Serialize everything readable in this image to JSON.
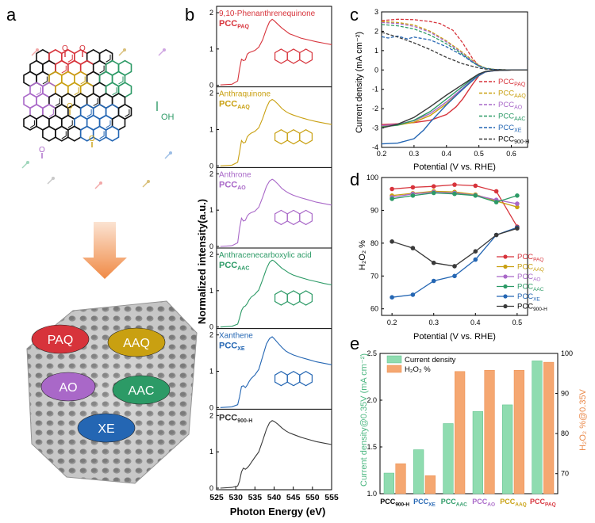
{
  "panel_labels": [
    "a",
    "b",
    "c",
    "d",
    "e"
  ],
  "colors": {
    "PAQ": "#d7333b",
    "AAQ": "#c9a011",
    "AO": "#a968c8",
    "AAC": "#2c9a66",
    "XE": "#2466b3",
    "H900": "#3a3a3a",
    "bar_green": "#8fdcb0",
    "bar_orange": "#f5a771",
    "axis_left_e": "#4fb883",
    "axis_right_e": "#ea8a4b"
  },
  "panel_a": {
    "cluster_labels": [
      "PAQ",
      "AAQ",
      "AO",
      "AAC",
      "XE"
    ],
    "oh_label": "OH",
    "o_label": "O"
  },
  "chart_data": [
    {
      "panel": "b",
      "type": "line",
      "xlabel": "Photon Energy (eV)",
      "ylabel": "Normalized intensity(a.u.)",
      "xlim": [
        525,
        555
      ],
      "xticks": [
        525,
        530,
        535,
        540,
        545,
        550,
        555
      ],
      "yticks": [
        "0",
        "1",
        "2"
      ],
      "ylim": [
        0,
        2
      ],
      "series": [
        {
          "key": "PAQ",
          "title": "9,10-Phenanthrenequinone",
          "sample": "PCC",
          "sub": "PAQ",
          "x": [
            526,
            529,
            530.5,
            531,
            531.5,
            532,
            532.5,
            533,
            533.5,
            534,
            535,
            536,
            537,
            538,
            538.8,
            539.5,
            540,
            541,
            542,
            543,
            544,
            545,
            547,
            549,
            551,
            553,
            555
          ],
          "y": [
            0.01,
            0.03,
            0.12,
            0.45,
            0.72,
            0.68,
            0.7,
            0.86,
            0.9,
            0.92,
            0.96,
            1.05,
            1.25,
            1.55,
            1.75,
            1.82,
            1.78,
            1.68,
            1.58,
            1.5,
            1.42,
            1.38,
            1.3,
            1.25,
            1.2,
            1.16,
            1.12
          ]
        },
        {
          "key": "AAQ",
          "title": "Anthraquinone",
          "sample": "PCC",
          "sub": "AAQ",
          "x": [
            526,
            529,
            530.5,
            531,
            531.5,
            532,
            532.5,
            533,
            533.5,
            534,
            535,
            536,
            537,
            538,
            538.8,
            539.5,
            540,
            541,
            542,
            543,
            544,
            545,
            547,
            549,
            551,
            553,
            555
          ],
          "y": [
            0.0,
            0.02,
            0.1,
            0.38,
            0.7,
            0.63,
            0.65,
            0.8,
            0.86,
            0.9,
            0.95,
            1.05,
            1.3,
            1.6,
            1.78,
            1.83,
            1.8,
            1.7,
            1.58,
            1.5,
            1.44,
            1.4,
            1.33,
            1.27,
            1.22,
            1.18,
            1.14
          ]
        },
        {
          "key": "AO",
          "title": "Anthrone",
          "sample": "PCC",
          "sub": "AO",
          "x": [
            526,
            529,
            530.5,
            531,
            531.5,
            532,
            532.5,
            533,
            533.5,
            534,
            535,
            536,
            537,
            538,
            538.8,
            539.5,
            540,
            541,
            542,
            543,
            544,
            545,
            547,
            549,
            551,
            553,
            555
          ],
          "y": [
            0.0,
            0.02,
            0.1,
            0.5,
            0.78,
            0.7,
            0.72,
            0.84,
            0.9,
            0.93,
            0.97,
            1.08,
            1.35,
            1.65,
            1.8,
            1.85,
            1.82,
            1.72,
            1.6,
            1.52,
            1.46,
            1.41,
            1.34,
            1.28,
            1.22,
            1.18,
            1.14
          ]
        },
        {
          "key": "AAC",
          "title": "Anthracenecarboxylic acid",
          "sample": "PCC",
          "sub": "AAC",
          "x": [
            526,
            529,
            530.5,
            531,
            531.5,
            532,
            532.5,
            533,
            533.5,
            534,
            535,
            536,
            537,
            538,
            538.8,
            539.5,
            540,
            541,
            542,
            543,
            544,
            545,
            547,
            549,
            551,
            553,
            555
          ],
          "y": [
            0.0,
            0.02,
            0.08,
            0.25,
            0.45,
            0.55,
            0.58,
            0.65,
            0.75,
            0.82,
            0.9,
            1.02,
            1.3,
            1.6,
            1.78,
            1.84,
            1.82,
            1.72,
            1.62,
            1.55,
            1.48,
            1.43,
            1.36,
            1.3,
            1.25,
            1.2,
            1.16
          ]
        },
        {
          "key": "XE",
          "title": "Xanthene",
          "sample": "PCC",
          "sub": "XE",
          "x": [
            526,
            529,
            530.5,
            531,
            531.5,
            532,
            532.5,
            533,
            533.5,
            534,
            535,
            536,
            537,
            538,
            538.8,
            539.5,
            540,
            541,
            542,
            543,
            544,
            545,
            547,
            549,
            551,
            553,
            555
          ],
          "y": [
            0.0,
            0.02,
            0.08,
            0.3,
            0.58,
            0.6,
            0.55,
            0.62,
            0.72,
            0.8,
            0.9,
            1.05,
            1.4,
            1.75,
            1.9,
            1.95,
            1.9,
            1.78,
            1.66,
            1.56,
            1.5,
            1.45,
            1.38,
            1.32,
            1.26,
            1.22,
            1.18
          ]
        },
        {
          "key": "H900",
          "title": "",
          "sample": "PCC",
          "sub": "900-H",
          "x": [
            526,
            529,
            530.5,
            531,
            531.5,
            532,
            532.5,
            533,
            533.5,
            534,
            535,
            536,
            537,
            538,
            538.8,
            539.5,
            540,
            541,
            542,
            543,
            544,
            545,
            547,
            549,
            551,
            553,
            555
          ],
          "y": [
            0.0,
            0.02,
            0.06,
            0.2,
            0.45,
            0.55,
            0.52,
            0.56,
            0.62,
            0.7,
            0.85,
            1.0,
            1.3,
            1.62,
            1.8,
            1.86,
            1.84,
            1.76,
            1.66,
            1.58,
            1.52,
            1.48,
            1.4,
            1.34,
            1.28,
            1.24,
            1.2
          ]
        }
      ]
    },
    {
      "panel": "c",
      "type": "line",
      "xlabel": "Potential (V vs. RHE)",
      "ylabel": "Current density (mA cm⁻²)",
      "xlim": [
        0.2,
        0.65
      ],
      "ylim": [
        -4,
        3
      ],
      "xticks": [
        0.2,
        0.3,
        0.4,
        0.5,
        0.6
      ],
      "yticks": [
        -4,
        -3,
        -2,
        -1,
        0,
        1,
        2,
        3
      ],
      "legend": "center-right",
      "ring_series": [
        {
          "key": "PAQ",
          "x": [
            0.2,
            0.25,
            0.3,
            0.35,
            0.38,
            0.42,
            0.45,
            0.48,
            0.5,
            0.52,
            0.55,
            0.6,
            0.65
          ],
          "y": [
            2.55,
            2.62,
            2.6,
            2.5,
            2.4,
            2.05,
            1.4,
            0.6,
            0.22,
            0.07,
            0.02,
            0.0,
            0.0
          ]
        },
        {
          "key": "AAQ",
          "x": [
            0.2,
            0.25,
            0.3,
            0.35,
            0.4,
            0.45,
            0.48,
            0.5,
            0.52,
            0.55,
            0.6,
            0.65
          ],
          "y": [
            2.5,
            2.45,
            2.32,
            2.0,
            1.5,
            0.9,
            0.5,
            0.25,
            0.1,
            0.03,
            0.0,
            0.0
          ]
        },
        {
          "key": "AO",
          "x": [
            0.2,
            0.25,
            0.3,
            0.35,
            0.4,
            0.45,
            0.48,
            0.5,
            0.52,
            0.55,
            0.6,
            0.65
          ],
          "y": [
            2.45,
            2.4,
            2.25,
            1.95,
            1.45,
            0.85,
            0.45,
            0.22,
            0.08,
            0.02,
            0.0,
            0.0
          ]
        },
        {
          "key": "AAC",
          "x": [
            0.2,
            0.25,
            0.3,
            0.35,
            0.4,
            0.45,
            0.48,
            0.5,
            0.52,
            0.55,
            0.6,
            0.65
          ],
          "y": [
            2.35,
            2.28,
            2.12,
            1.8,
            1.35,
            0.8,
            0.42,
            0.2,
            0.08,
            0.02,
            0.0,
            0.0
          ]
        },
        {
          "key": "XE",
          "x": [
            0.2,
            0.22,
            0.25,
            0.28,
            0.3,
            0.35,
            0.4,
            0.45,
            0.48,
            0.5,
            0.52,
            0.55,
            0.6,
            0.65
          ],
          "y": [
            1.72,
            1.65,
            1.75,
            1.6,
            1.7,
            1.55,
            1.2,
            0.75,
            0.4,
            0.2,
            0.08,
            0.02,
            0.0,
            0.0
          ]
        },
        {
          "key": "H900",
          "x": [
            0.2,
            0.25,
            0.3,
            0.35,
            0.4,
            0.45,
            0.5,
            0.52,
            0.55,
            0.6,
            0.65
          ],
          "y": [
            1.95,
            1.7,
            1.4,
            1.05,
            0.65,
            0.32,
            0.1,
            0.05,
            0.02,
            0.0,
            0.0
          ]
        }
      ],
      "disk_series": [
        {
          "key": "PAQ",
          "x": [
            0.2,
            0.25,
            0.3,
            0.35,
            0.4,
            0.43,
            0.45,
            0.48,
            0.5,
            0.52,
            0.55,
            0.6,
            0.65
          ],
          "y": [
            -2.82,
            -2.78,
            -2.72,
            -2.6,
            -2.3,
            -1.9,
            -1.5,
            -0.75,
            -0.3,
            -0.1,
            -0.03,
            0.0,
            0.0
          ]
        },
        {
          "key": "AAQ",
          "x": [
            0.2,
            0.25,
            0.3,
            0.35,
            0.4,
            0.45,
            0.48,
            0.5,
            0.52,
            0.55,
            0.6,
            0.65
          ],
          "y": [
            -2.92,
            -2.85,
            -2.7,
            -2.35,
            -1.75,
            -1.0,
            -0.55,
            -0.28,
            -0.1,
            -0.03,
            0.0,
            0.0
          ]
        },
        {
          "key": "AO",
          "x": [
            0.2,
            0.25,
            0.3,
            0.35,
            0.4,
            0.45,
            0.48,
            0.5,
            0.52,
            0.55,
            0.6,
            0.65
          ],
          "y": [
            -2.88,
            -2.8,
            -2.62,
            -2.25,
            -1.65,
            -0.95,
            -0.5,
            -0.25,
            -0.1,
            -0.03,
            0.0,
            0.0
          ]
        },
        {
          "key": "AAC",
          "x": [
            0.2,
            0.25,
            0.3,
            0.35,
            0.4,
            0.45,
            0.48,
            0.5,
            0.52,
            0.55,
            0.6,
            0.65
          ],
          "y": [
            -2.95,
            -2.85,
            -2.6,
            -2.15,
            -1.5,
            -0.85,
            -0.45,
            -0.22,
            -0.08,
            -0.02,
            0.0,
            0.0
          ]
        },
        {
          "key": "XE",
          "x": [
            0.2,
            0.25,
            0.3,
            0.33,
            0.35,
            0.4,
            0.45,
            0.48,
            0.5,
            0.52,
            0.55,
            0.6,
            0.65
          ],
          "y": [
            -3.82,
            -3.78,
            -3.55,
            -3.1,
            -2.7,
            -1.8,
            -1.0,
            -0.55,
            -0.28,
            -0.1,
            -0.03,
            0.0,
            0.0
          ]
        },
        {
          "key": "H900",
          "x": [
            0.2,
            0.25,
            0.3,
            0.35,
            0.4,
            0.45,
            0.48,
            0.5,
            0.52,
            0.55,
            0.6,
            0.65
          ],
          "y": [
            -3.0,
            -2.8,
            -2.45,
            -1.9,
            -1.3,
            -0.75,
            -0.42,
            -0.2,
            -0.08,
            -0.02,
            0.0,
            0.0
          ]
        }
      ]
    },
    {
      "panel": "d",
      "type": "line",
      "xlabel": "Potential (V vs. RHE)",
      "ylabel": "H₂O₂ %",
      "xlim": [
        0.175,
        0.525
      ],
      "ylim": [
        58,
        100
      ],
      "xticks": [
        0.2,
        0.3,
        0.4,
        0.5
      ],
      "yticks": [
        60,
        70,
        80,
        90,
        100
      ],
      "legend": "center-right",
      "x": [
        0.2,
        0.25,
        0.3,
        0.35,
        0.4,
        0.45,
        0.5
      ],
      "series": [
        {
          "key": "PAQ",
          "values": [
            96.5,
            97.0,
            97.3,
            97.8,
            97.5,
            95.8,
            85.0
          ]
        },
        {
          "key": "AAQ",
          "values": [
            94.5,
            95.2,
            95.8,
            95.6,
            94.8,
            92.8,
            91.0
          ]
        },
        {
          "key": "AO",
          "values": [
            94.0,
            95.0,
            95.5,
            95.3,
            94.6,
            93.2,
            92.0
          ]
        },
        {
          "key": "AAC",
          "values": [
            93.5,
            94.5,
            95.3,
            95.0,
            94.5,
            92.5,
            94.5
          ]
        },
        {
          "key": "XE",
          "values": [
            63.5,
            64.3,
            68.5,
            70.0,
            75.0,
            82.5,
            84.8
          ]
        },
        {
          "key": "H900",
          "values": [
            80.5,
            78.5,
            74.0,
            73.0,
            77.5,
            82.5,
            84.5
          ]
        }
      ]
    },
    {
      "panel": "e",
      "type": "bar",
      "ylabel_left": "Current density@0.35V (mA cm⁻²)",
      "ylabel_right": "H₂O₂ %@0.35V",
      "ylim_left": [
        1.0,
        2.5
      ],
      "ylim_right": [
        65,
        100
      ],
      "yticks_left": [
        "1.0",
        "1.5",
        "2.0",
        "2.5"
      ],
      "yticks_right": [
        70,
        80,
        90,
        100
      ],
      "legend": "top-left",
      "categories": [
        {
          "key": "H900",
          "main": "PCC",
          "sub": "900-H"
        },
        {
          "key": "XE",
          "main": "PCC",
          "sub": "XE"
        },
        {
          "key": "AAC",
          "main": "PCC",
          "sub": "AAC"
        },
        {
          "key": "AO",
          "main": "PCC",
          "sub": "AO"
        },
        {
          "key": "AAQ",
          "main": "PCC",
          "sub": "AAQ"
        },
        {
          "key": "PAQ",
          "main": "PCC",
          "sub": "PAQ"
        }
      ],
      "series": [
        {
          "name": "Current density",
          "axis": "left",
          "values": [
            1.22,
            1.47,
            1.75,
            1.88,
            1.95,
            2.42
          ]
        },
        {
          "name": "H₂O₂ %",
          "axis": "right",
          "values": [
            72.5,
            69.5,
            95.5,
            95.8,
            95.8,
            97.8
          ]
        }
      ]
    }
  ]
}
